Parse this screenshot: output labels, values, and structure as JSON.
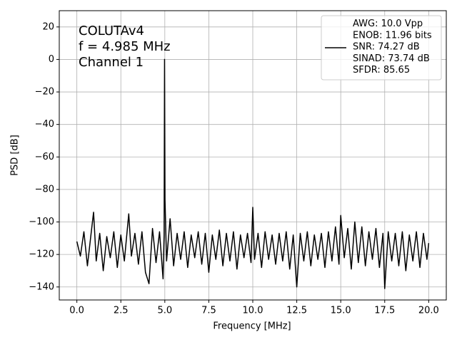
{
  "chart_data": {
    "type": "line",
    "xlabel": "Frequency [MHz]",
    "ylabel": "PSD [dB]",
    "annotation": [
      "COLUTAv4",
      "f = 4.985 MHz",
      "Channel 1"
    ],
    "x": [
      0.0,
      0.2,
      0.4,
      0.6,
      0.8,
      0.95,
      1.1,
      1.3,
      1.5,
      1.7,
      1.9,
      2.1,
      2.3,
      2.5,
      2.7,
      2.95,
      3.1,
      3.3,
      3.5,
      3.7,
      3.9,
      4.1,
      4.3,
      4.5,
      4.7,
      4.9,
      4.96,
      4.985,
      5.01,
      5.1,
      5.3,
      5.5,
      5.7,
      5.9,
      6.1,
      6.3,
      6.5,
      6.7,
      6.9,
      7.1,
      7.3,
      7.5,
      7.7,
      7.9,
      8.1,
      8.3,
      8.5,
      8.7,
      8.9,
      9.1,
      9.3,
      9.5,
      9.7,
      9.9,
      10.0,
      10.1,
      10.3,
      10.5,
      10.7,
      10.9,
      11.1,
      11.3,
      11.5,
      11.7,
      11.9,
      12.1,
      12.3,
      12.5,
      12.7,
      12.9,
      13.1,
      13.3,
      13.5,
      13.7,
      13.9,
      14.1,
      14.3,
      14.5,
      14.7,
      14.9,
      15.0,
      15.2,
      15.4,
      15.6,
      15.8,
      16.0,
      16.2,
      16.4,
      16.6,
      16.8,
      17.0,
      17.2,
      17.4,
      17.5,
      17.7,
      17.9,
      18.1,
      18.3,
      18.5,
      18.7,
      18.9,
      19.1,
      19.3,
      19.5,
      19.7,
      19.9,
      20.0
    ],
    "series": [
      {
        "name": "AWG: 10.0 Vpp\nENOB: 11.96 bits\nSNR: 74.27 dB\nSINAD: 73.74 dB\nSFDR: 85.65",
        "color": "#000000",
        "values": [
          -112,
          -121,
          -106,
          -127,
          -108,
          -94,
          -124,
          -107,
          -130,
          -109,
          -122,
          -106,
          -128,
          -108,
          -124,
          -95,
          -121,
          -107,
          -126,
          -106,
          -131,
          -138,
          -104,
          -125,
          -106,
          -135,
          -108,
          0,
          -86,
          -124,
          -98,
          -127,
          -107,
          -123,
          -106,
          -128,
          -108,
          -122,
          -106,
          -126,
          -107,
          -131,
          -108,
          -123,
          -105,
          -127,
          -107,
          -124,
          -106,
          -129,
          -108,
          -122,
          -107,
          -125,
          -91,
          -123,
          -107,
          -128,
          -106,
          -123,
          -108,
          -126,
          -107,
          -124,
          -106,
          -129,
          -108,
          -140,
          -107,
          -124,
          -106,
          -127,
          -108,
          -123,
          -107,
          -128,
          -106,
          -124,
          -103,
          -126,
          -96,
          -122,
          -104,
          -129,
          -100,
          -125,
          -103,
          -127,
          -106,
          -123,
          -104,
          -128,
          -107,
          -141,
          -106,
          -124,
          -107,
          -127,
          -106,
          -130,
          -108,
          -124,
          -106,
          -128,
          -107,
          -123,
          -113
        ]
      }
    ],
    "xlim": [
      -1,
      21
    ],
    "ylim": [
      -148,
      30
    ],
    "xticks": [
      {
        "value": 0,
        "label": "0.0"
      },
      2.5,
      {
        "value": 5,
        "label": "5.0"
      },
      7.5,
      {
        "value": 10,
        "label": "10.0"
      },
      12.5,
      {
        "value": 15,
        "label": "15.0"
      },
      17.5,
      {
        "value": 20,
        "label": "20.0"
      }
    ],
    "yticks": [
      {
        "value": -140,
        "label": "−140"
      },
      {
        "value": -120,
        "label": "−120"
      },
      {
        "value": -100,
        "label": "−100"
      },
      {
        "value": -80,
        "label": "−80"
      },
      {
        "value": -60,
        "label": "−60"
      },
      {
        "value": -40,
        "label": "−40"
      },
      {
        "value": -20,
        "label": "−20"
      },
      0,
      20
    ],
    "grid": true,
    "legend": "upper right"
  }
}
